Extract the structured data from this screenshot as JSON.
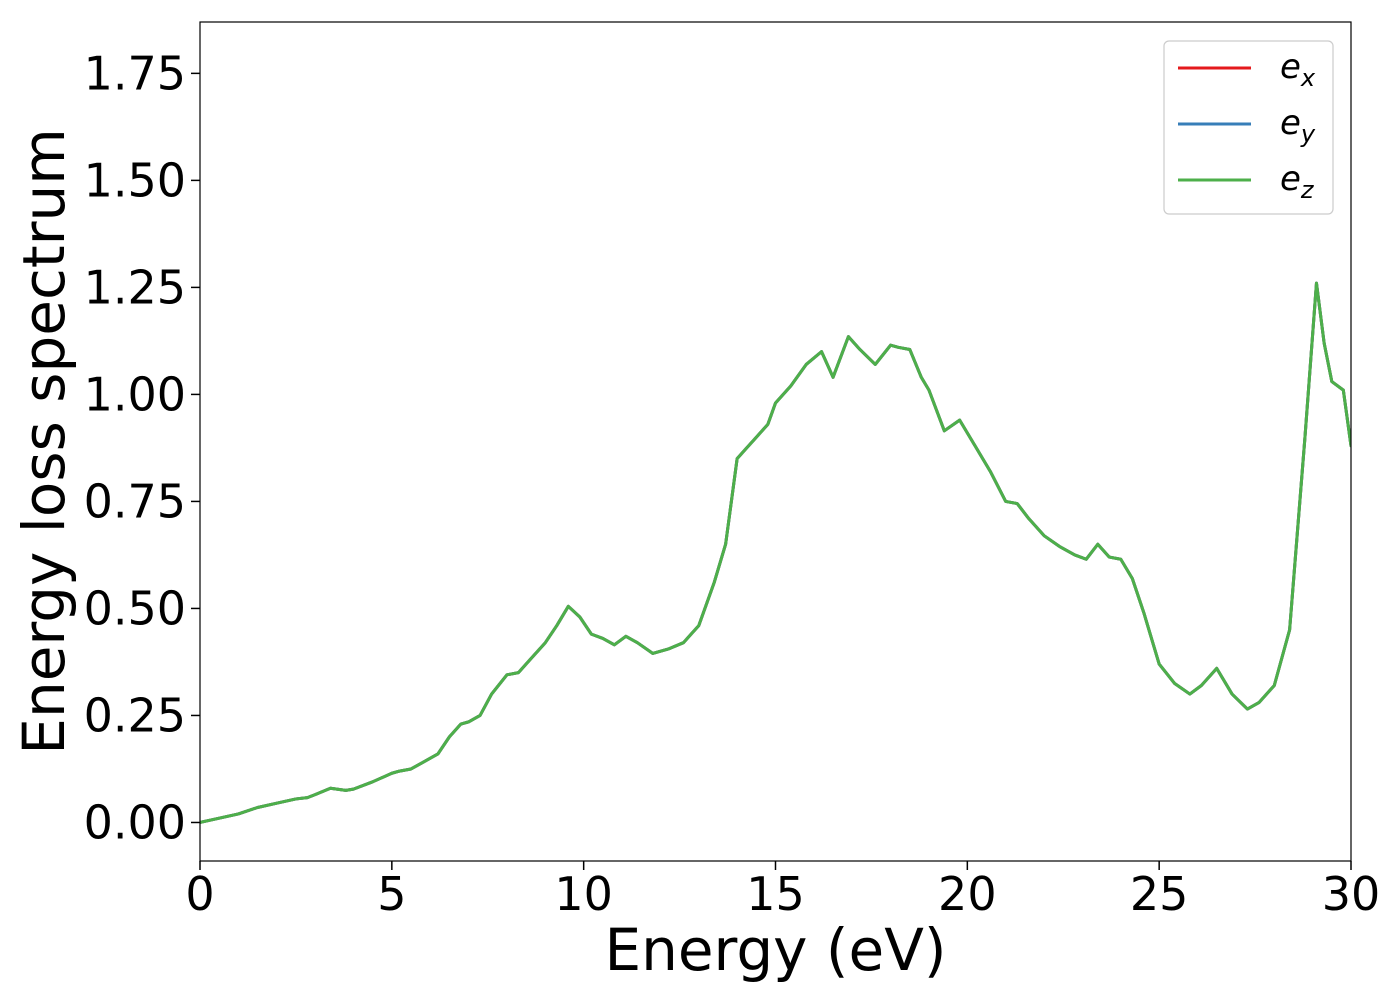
{
  "chart_data": {
    "type": "line",
    "title": "",
    "xlabel": "Energy (eV)",
    "ylabel": "Energy loss spectrum",
    "xlim": [
      0,
      30
    ],
    "ylim": [
      -0.09,
      1.87
    ],
    "xticks": [
      0,
      5,
      10,
      15,
      20,
      25,
      30
    ],
    "xtick_labels": [
      "0",
      "5",
      "10",
      "15",
      "20",
      "25",
      "30"
    ],
    "yticks": [
      0,
      0.25,
      0.5,
      0.75,
      1.0,
      1.25,
      1.5,
      1.75
    ],
    "ytick_labels": [
      "0.00",
      "0.25",
      "0.50",
      "0.75",
      "1.00",
      "1.25",
      "1.50",
      "1.75"
    ],
    "grid": false,
    "legend_position": "top-right",
    "x": [
      0,
      0.5,
      1.0,
      1.5,
      2.0,
      2.5,
      2.8,
      3.0,
      3.4,
      3.8,
      4.0,
      4.5,
      5.0,
      5.2,
      5.5,
      5.8,
      6.2,
      6.5,
      6.8,
      7.0,
      7.3,
      7.6,
      8.0,
      8.3,
      8.6,
      9.0,
      9.3,
      9.6,
      9.9,
      10.2,
      10.5,
      10.8,
      11.1,
      11.4,
      11.8,
      12.2,
      12.6,
      13.0,
      13.4,
      13.7,
      14.0,
      14.2,
      14.5,
      14.8,
      15.0,
      15.4,
      15.8,
      16.2,
      16.5,
      16.9,
      17.2,
      17.6,
      18.0,
      18.2,
      18.5,
      18.8,
      19.0,
      19.4,
      19.8,
      20.2,
      20.6,
      21.0,
      21.3,
      21.6,
      22.0,
      22.4,
      22.8,
      23.1,
      23.4,
      23.7,
      24.0,
      24.3,
      24.6,
      25.0,
      25.4,
      25.8,
      26.1,
      26.5,
      26.9,
      27.3,
      27.6,
      28.0,
      28.4,
      28.8,
      29.1,
      29.3,
      29.5,
      29.8,
      30.0
    ],
    "series": [
      {
        "name": "e_x",
        "color": "#e41a1c",
        "values": [
          0.0,
          0.01,
          0.02,
          0.035,
          0.045,
          0.055,
          0.058,
          0.065,
          0.08,
          0.075,
          0.078,
          0.095,
          0.115,
          0.12,
          0.125,
          0.14,
          0.16,
          0.2,
          0.23,
          0.235,
          0.25,
          0.3,
          0.345,
          0.35,
          0.38,
          0.42,
          0.46,
          0.505,
          0.48,
          0.44,
          0.43,
          0.415,
          0.435,
          0.42,
          0.395,
          0.405,
          0.42,
          0.46,
          0.56,
          0.65,
          0.85,
          0.87,
          0.9,
          0.93,
          0.98,
          1.02,
          1.07,
          1.1,
          1.04,
          1.135,
          1.105,
          1.07,
          1.115,
          1.11,
          1.105,
          1.04,
          1.01,
          0.915,
          0.94,
          0.88,
          0.82,
          0.75,
          0.745,
          0.71,
          0.67,
          0.645,
          0.625,
          0.615,
          0.65,
          0.62,
          0.615,
          0.57,
          0.49,
          0.37,
          0.325,
          0.3,
          0.32,
          0.36,
          0.3,
          0.265,
          0.28,
          0.32,
          0.45,
          0.9,
          1.26,
          1.12,
          1.03,
          1.01,
          0.88
        ]
      },
      {
        "name": "e_y",
        "color": "#377eb8",
        "values": [
          0.0,
          0.01,
          0.02,
          0.035,
          0.045,
          0.055,
          0.058,
          0.065,
          0.08,
          0.075,
          0.078,
          0.095,
          0.115,
          0.12,
          0.125,
          0.14,
          0.16,
          0.2,
          0.23,
          0.235,
          0.25,
          0.3,
          0.345,
          0.35,
          0.38,
          0.42,
          0.46,
          0.505,
          0.48,
          0.44,
          0.43,
          0.415,
          0.435,
          0.42,
          0.395,
          0.405,
          0.42,
          0.46,
          0.56,
          0.65,
          0.85,
          0.87,
          0.9,
          0.93,
          0.98,
          1.02,
          1.07,
          1.1,
          1.04,
          1.135,
          1.105,
          1.07,
          1.115,
          1.11,
          1.105,
          1.04,
          1.01,
          0.915,
          0.94,
          0.88,
          0.82,
          0.75,
          0.745,
          0.71,
          0.67,
          0.645,
          0.625,
          0.615,
          0.65,
          0.62,
          0.615,
          0.57,
          0.49,
          0.37,
          0.325,
          0.3,
          0.32,
          0.36,
          0.3,
          0.265,
          0.28,
          0.32,
          0.45,
          0.9,
          1.26,
          1.12,
          1.03,
          1.01,
          0.88
        ]
      },
      {
        "name": "e_z",
        "color": "#4daf4a",
        "values": [
          0.0,
          0.01,
          0.02,
          0.035,
          0.045,
          0.055,
          0.058,
          0.065,
          0.08,
          0.075,
          0.078,
          0.095,
          0.115,
          0.12,
          0.125,
          0.14,
          0.16,
          0.2,
          0.23,
          0.235,
          0.25,
          0.3,
          0.345,
          0.35,
          0.38,
          0.42,
          0.46,
          0.505,
          0.48,
          0.44,
          0.43,
          0.415,
          0.435,
          0.42,
          0.395,
          0.405,
          0.42,
          0.46,
          0.56,
          0.65,
          0.85,
          0.87,
          0.9,
          0.93,
          0.98,
          1.02,
          1.07,
          1.1,
          1.04,
          1.135,
          1.105,
          1.07,
          1.115,
          1.11,
          1.105,
          1.04,
          1.01,
          0.915,
          0.94,
          0.88,
          0.82,
          0.75,
          0.745,
          0.71,
          0.67,
          0.645,
          0.625,
          0.615,
          0.65,
          0.62,
          0.615,
          0.57,
          0.49,
          0.37,
          0.325,
          0.3,
          0.32,
          0.36,
          0.3,
          0.265,
          0.28,
          0.32,
          0.45,
          0.9,
          1.26,
          1.12,
          1.03,
          1.01,
          0.88
        ]
      }
    ],
    "legend": [
      {
        "base": "e",
        "sub": "x",
        "color": "#e41a1c"
      },
      {
        "base": "e",
        "sub": "y",
        "color": "#377eb8"
      },
      {
        "base": "e",
        "sub": "z",
        "color": "#4daf4a"
      }
    ]
  }
}
